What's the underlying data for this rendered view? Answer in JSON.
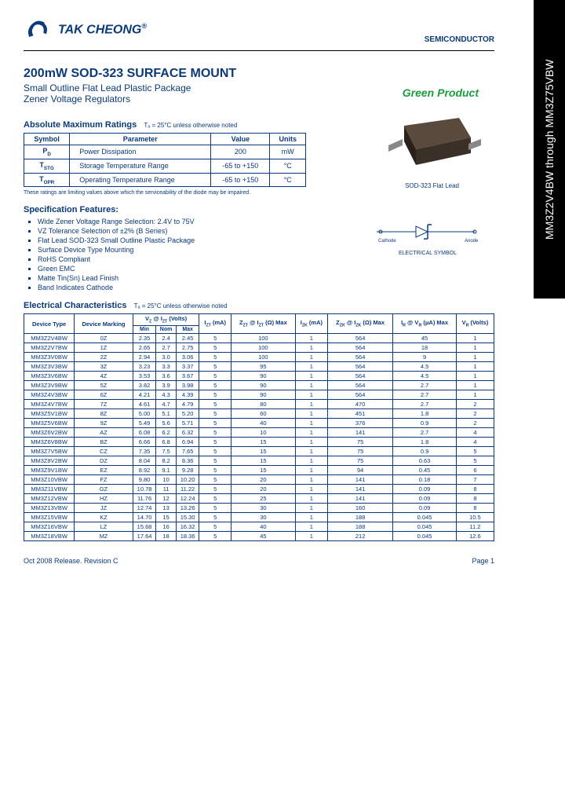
{
  "side_tab": "MM3Z2V4BW through MM3Z75VBW",
  "company": "TAK CHEONG",
  "semiconductor": "SEMICONDUCTOR",
  "main_title": "200mW SOD-323 SURFACE MOUNT",
  "subtitle1": "Small Outline Flat Lead Plastic Package",
  "subtitle2": "Zener Voltage Regulators",
  "green_product": "Green Product",
  "package_caption": "SOD-323 Flat Lead",
  "ratings_title": "Absolute Maximum Ratings",
  "ratings_note": "Tₐ = 25°C unless otherwise noted",
  "ratings_headers": [
    "Symbol",
    "Parameter",
    "Value",
    "Units"
  ],
  "ratings_rows": [
    [
      "P_D",
      "Power Dissipation",
      "200",
      "mW"
    ],
    [
      "T_STG",
      "Storage Temperature Range",
      "-65 to +150",
      "°C"
    ],
    [
      "T_OPR",
      "Operating Temperature Range",
      "-65 to +150",
      "°C"
    ]
  ],
  "ratings_footnote": "These ratings are limiting values above which the serviceability of the diode may be impaired.",
  "features_title": "Specification Features:",
  "features": [
    "Wide Zener Voltage Range Selection: 2.4V to 75V",
    "VZ Tolerance Selection of ±2% (B Series)",
    "Flat Lead SOD-323 Small Outline Plastic Package",
    "Surface Device Type Mounting",
    "RoHS Compliant",
    "Green EMC",
    "Matte Tin(Sn) Lead Finish",
    "Band Indicates Cathode"
  ],
  "symbol_cathode": "Cathode",
  "symbol_anode": "Anode",
  "symbol_caption": "ELECTRICAL SYMBOL",
  "elec_title": "Electrical Characteristics",
  "elec_note": "Tₐ = 25°C unless otherwise noted",
  "elec_headers_top": [
    "Device Type",
    "Device Marking",
    "V_Z @ I_ZT (Volts)",
    "I_ZT (mA)",
    "Z_ZT @ I_ZT (Ω) Max",
    "I_ZK (mA)",
    "Z_ZK @ I_ZK (Ω) Max",
    "I_R @ V_R (μA) Max",
    "V_R (Volts)"
  ],
  "elec_headers_sub": [
    "Min",
    "Nom",
    "Max"
  ],
  "elec_rows": [
    [
      "MM3Z2V4BW",
      "0Z",
      "2.35",
      "2.4",
      "2.45",
      "5",
      "100",
      "1",
      "564",
      "45",
      "1"
    ],
    [
      "MM3Z2V7BW",
      "1Z",
      "2.65",
      "2.7",
      "2.75",
      "5",
      "100",
      "1",
      "564",
      "18",
      "1"
    ],
    [
      "MM3Z3V0BW",
      "2Z",
      "2.94",
      "3.0",
      "3.06",
      "5",
      "100",
      "1",
      "564",
      "9",
      "1"
    ],
    [
      "MM3Z3V3BW",
      "3Z",
      "3.23",
      "3.3",
      "3.37",
      "5",
      "95",
      "1",
      "564",
      "4.5",
      "1"
    ],
    [
      "MM3Z3V6BW",
      "4Z",
      "3.53",
      "3.6",
      "3.67",
      "5",
      "90",
      "1",
      "564",
      "4.5",
      "1"
    ],
    [
      "MM3Z3V9BW",
      "5Z",
      "3.82",
      "3.9",
      "3.98",
      "5",
      "90",
      "1",
      "564",
      "2.7",
      "1"
    ],
    [
      "MM3Z4V3BW",
      "6Z",
      "4.21",
      "4.3",
      "4.39",
      "5",
      "90",
      "1",
      "564",
      "2.7",
      "1"
    ],
    [
      "MM3Z4V7BW",
      "7Z",
      "4.61",
      "4.7",
      "4.79",
      "5",
      "80",
      "1",
      "470",
      "2.7",
      "2"
    ],
    [
      "MM3Z5V1BW",
      "8Z",
      "5.00",
      "5.1",
      "5.20",
      "5",
      "60",
      "1",
      "451",
      "1.8",
      "2"
    ],
    [
      "MM3Z5V6BW",
      "9Z",
      "5.49",
      "5.6",
      "5.71",
      "5",
      "40",
      "1",
      "376",
      "0.9",
      "2"
    ],
    [
      "MM3Z6V2BW",
      "AZ",
      "6.08",
      "6.2",
      "6.32",
      "5",
      "10",
      "1",
      "141",
      "2.7",
      "4"
    ],
    [
      "MM3Z6V8BW",
      "BZ",
      "6.66",
      "6.8",
      "6.94",
      "5",
      "15",
      "1",
      "75",
      "1.8",
      "4"
    ],
    [
      "MM3Z7V5BW",
      "CZ",
      "7.35",
      "7.5",
      "7.65",
      "5",
      "15",
      "1",
      "75",
      "0.9",
      "5"
    ],
    [
      "MM3Z8V2BW",
      "DZ",
      "8.04",
      "8.2",
      "8.36",
      "5",
      "15",
      "1",
      "75",
      "0.63",
      "5"
    ],
    [
      "MM3Z9V1BW",
      "EZ",
      "8.92",
      "9.1",
      "9.28",
      "5",
      "15",
      "1",
      "94",
      "0.45",
      "6"
    ],
    [
      "MM3Z10VBW",
      "FZ",
      "9.80",
      "10",
      "10.20",
      "5",
      "20",
      "1",
      "141",
      "0.18",
      "7"
    ],
    [
      "MM3Z11VBW",
      "GZ",
      "10.78",
      "11",
      "11.22",
      "5",
      "20",
      "1",
      "141",
      "0.09",
      "8"
    ],
    [
      "MM3Z12VBW",
      "HZ",
      "11.76",
      "12",
      "12.24",
      "5",
      "25",
      "1",
      "141",
      "0.09",
      "8"
    ],
    [
      "MM3Z13VBW",
      "JZ",
      "12.74",
      "13",
      "13.26",
      "5",
      "30",
      "1",
      "160",
      "0.09",
      "8"
    ],
    [
      "MM3Z15VBW",
      "KZ",
      "14.70",
      "15",
      "15.30",
      "5",
      "30",
      "1",
      "188",
      "0.045",
      "10.5"
    ],
    [
      "MM3Z16VBW",
      "LZ",
      "15.68",
      "16",
      "16.32",
      "5",
      "40",
      "1",
      "188",
      "0.045",
      "11.2"
    ],
    [
      "MM3Z18VBW",
      "MZ",
      "17.64",
      "18",
      "18.36",
      "5",
      "45",
      "1",
      "212",
      "0.045",
      "12.6"
    ]
  ],
  "footer_left": "Oct 2008 Release. Revision C",
  "footer_right": "Page 1",
  "colors": {
    "brand": "#0a3a7a",
    "green": "#1a9e3e",
    "package_body": "#3a3028",
    "package_top": "#5a4a3e"
  }
}
